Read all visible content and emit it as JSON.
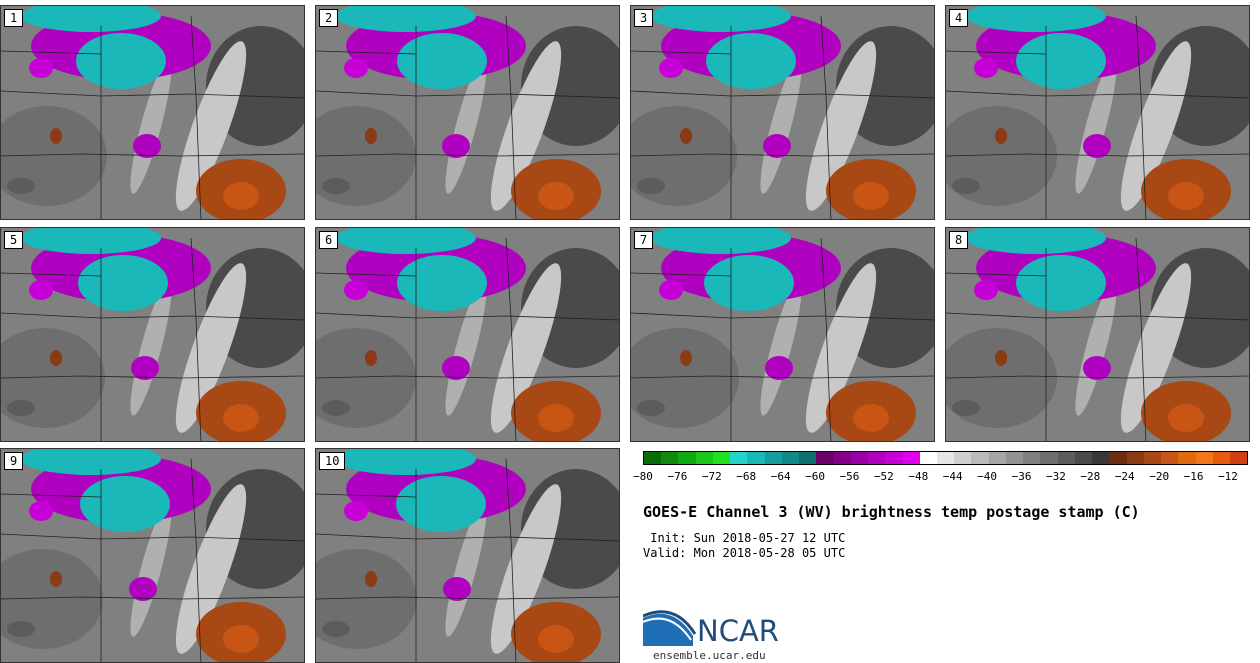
{
  "panels": [
    "1",
    "2",
    "3",
    "4",
    "5",
    "6",
    "7",
    "8",
    "9",
    "10"
  ],
  "colorbar": {
    "colors": [
      "#0a6b0a",
      "#0f8a0f",
      "#12a812",
      "#1ac61a",
      "#20e020",
      "#22d3c8",
      "#1ab8b8",
      "#159e9e",
      "#138a8a",
      "#0f7070",
      "#6a006a",
      "#82008a",
      "#9a00a8",
      "#b000c0",
      "#c800d8",
      "#e000f0",
      "#ffffff",
      "#e6e6e6",
      "#cfcfcf",
      "#bababa",
      "#a6a6a6",
      "#939393",
      "#808080",
      "#6e6e6e",
      "#5c5c5c",
      "#4a4a4a",
      "#383838",
      "#6b2e14",
      "#8a3a14",
      "#a84814",
      "#c85514",
      "#e06a10",
      "#f07818",
      "#e85a10",
      "#d04010"
    ],
    "ticks": [
      "−80",
      "−76",
      "−72",
      "−68",
      "−64",
      "−60",
      "−56",
      "−52",
      "−48",
      "−44",
      "−40",
      "−36",
      "−32",
      "−28",
      "−24",
      "−20",
      "−16",
      "−12"
    ]
  },
  "title": "GOES-E Channel 3 (WV) brightness temp postage stamp (C)",
  "init": " Init: Sun 2018-05-27 12 UTC",
  "valid": "Valid: Mon 2018-05-28 05 UTC",
  "logo_text": "NCAR",
  "url": "ensemble.ucar.edu"
}
